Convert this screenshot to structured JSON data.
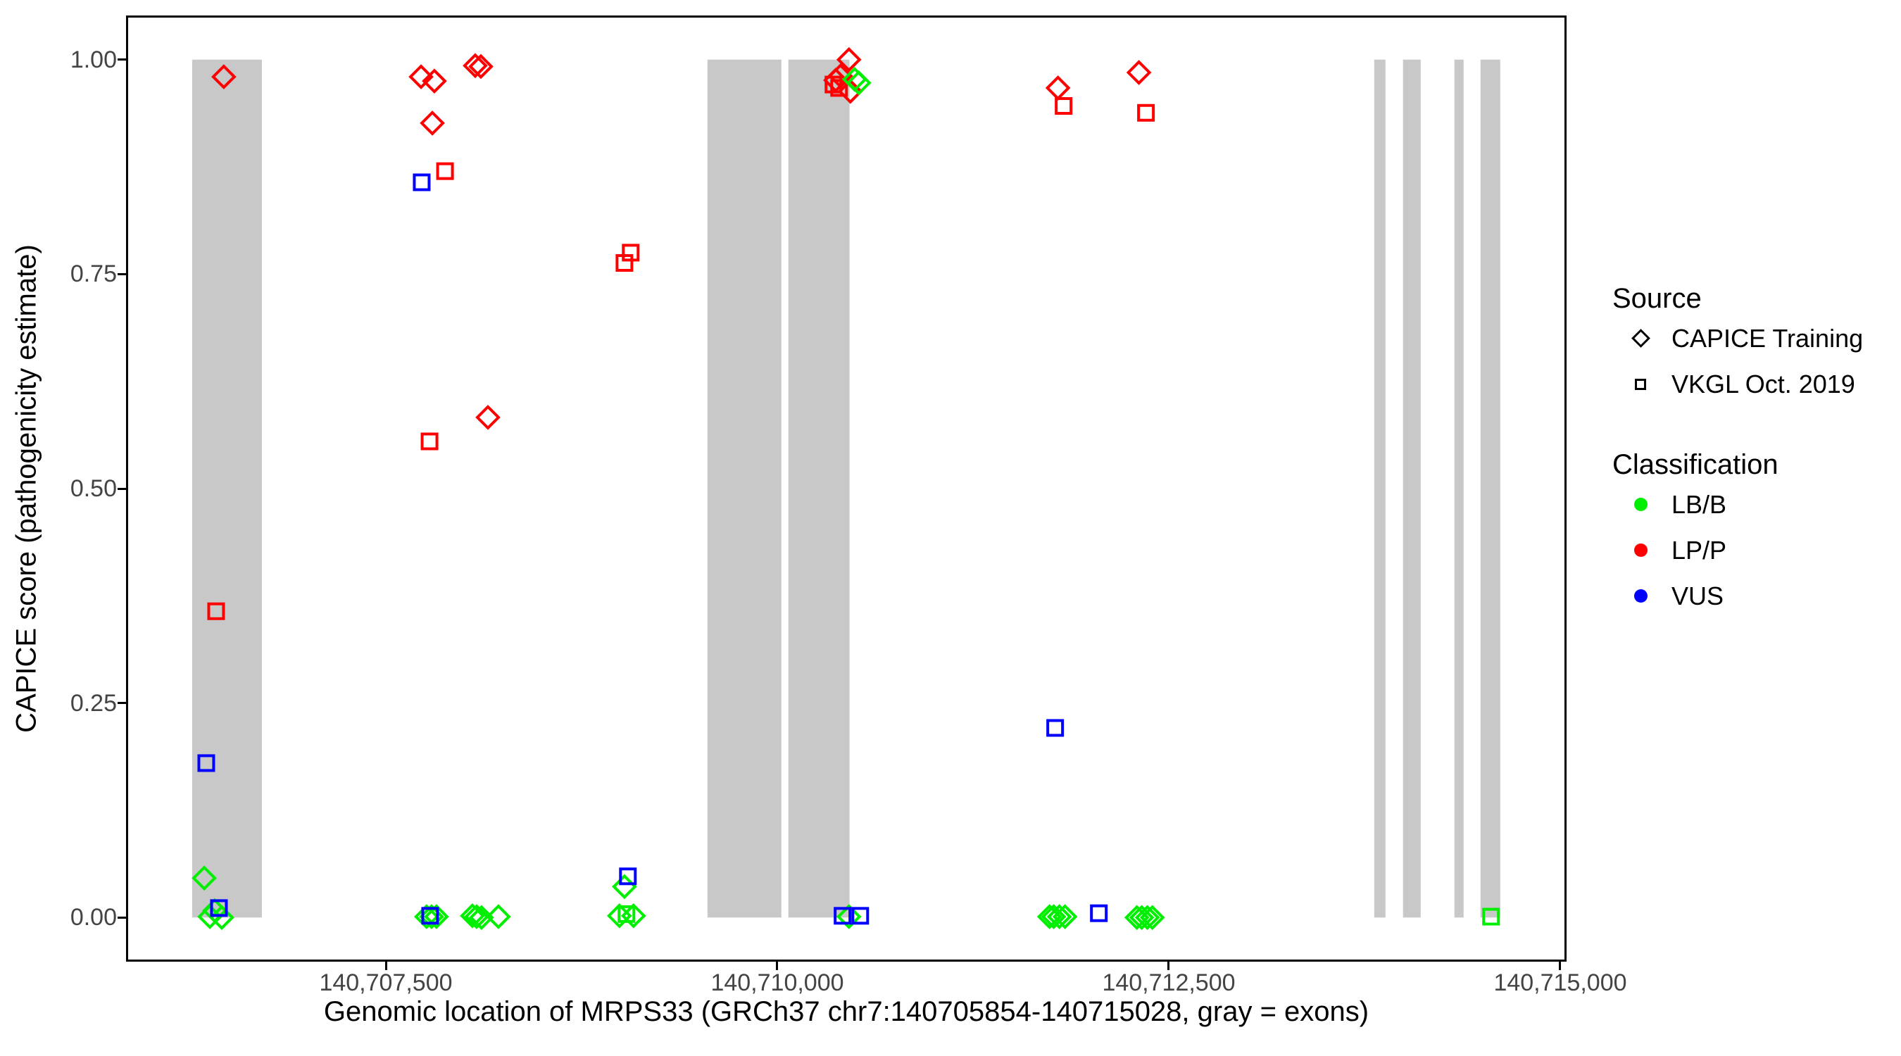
{
  "axes": {
    "y_title": "CAPICE score (pathogenicity estimate)",
    "x_title": "Genomic location of MRPS33 (GRCh37 chr7:140705854-140715028, gray = exons)",
    "y_ticks": [
      {
        "value": 0.0,
        "label": "0.00"
      },
      {
        "value": 0.25,
        "label": "0.25"
      },
      {
        "value": 0.5,
        "label": "0.50"
      },
      {
        "value": 0.75,
        "label": "0.75"
      },
      {
        "value": 1.0,
        "label": "1.00"
      }
    ],
    "x_ticks": [
      {
        "value": 140707500,
        "label": "140,707,500"
      },
      {
        "value": 140710000,
        "label": "140,710,000"
      },
      {
        "value": 140712500,
        "label": "140,712,500"
      },
      {
        "value": 140715000,
        "label": "140,715,000"
      }
    ]
  },
  "legend": {
    "source": {
      "title": "Source",
      "items": [
        {
          "label": "CAPICE Training",
          "shape": "diamond"
        },
        {
          "label": "VKGL Oct. 2019",
          "shape": "square"
        }
      ]
    },
    "classification": {
      "title": "Classification",
      "items": [
        {
          "label": "LB/B",
          "color": "#00EE00"
        },
        {
          "label": "LP/P",
          "color": "#FF0000"
        },
        {
          "label": "VUS",
          "color": "#0000FF"
        }
      ]
    }
  },
  "chart_data": {
    "type": "scatter",
    "title": "",
    "xlabel": "Genomic location of MRPS33 (GRCh37 chr7:140705854-140715028, gray = exons)",
    "ylabel": "CAPICE score (pathogenicity estimate)",
    "xlim": [
      140705854,
      140715028
    ],
    "ylim": [
      -0.049,
      1.049
    ],
    "grid": false,
    "legend_position": "right",
    "exon_color": "#C8C8C8",
    "exons": [
      [
        140706263,
        140706708
      ],
      [
        140709554,
        140710026
      ],
      [
        140710071,
        140710462
      ],
      [
        140713813,
        140713885
      ],
      [
        140713997,
        140714110
      ],
      [
        140714325,
        140714384
      ],
      [
        140714492,
        140714618
      ]
    ],
    "series": [
      {
        "name": "CAPICE Training / LP/P",
        "marker": "diamond",
        "color": "#FF0000",
        "points": [
          [
            140706465,
            0.98
          ],
          [
            140707725,
            0.98
          ],
          [
            140707810,
            0.975
          ],
          [
            140707797,
            0.926
          ],
          [
            140708071,
            0.993
          ],
          [
            140708107,
            0.992
          ],
          [
            140708152,
            0.583
          ],
          [
            140710458,
            1.0
          ],
          [
            140710404,
            0.981
          ],
          [
            140710373,
            0.976
          ],
          [
            140710467,
            0.963
          ],
          [
            140711793,
            0.967
          ],
          [
            140712310,
            0.985
          ]
        ]
      },
      {
        "name": "VKGL Oct. 2019 / LP/P",
        "marker": "square",
        "color": "#FF0000",
        "points": [
          [
            140706416,
            0.357
          ],
          [
            140707878,
            0.87
          ],
          [
            140707779,
            0.555
          ],
          [
            140709064,
            0.775
          ],
          [
            140709024,
            0.763
          ],
          [
            140710359,
            0.971
          ],
          [
            140710395,
            0.967
          ],
          [
            140711829,
            0.946
          ],
          [
            140712355,
            0.938
          ]
        ]
      },
      {
        "name": "CAPICE Training / LB/B",
        "marker": "diamond",
        "color": "#00EE00",
        "points": [
          [
            140706340,
            0.046
          ],
          [
            140706407,
            0.008
          ],
          [
            140706376,
            0.001
          ],
          [
            140706452,
            0.0
          ],
          [
            140707760,
            0.001
          ],
          [
            140707792,
            0.001
          ],
          [
            140707823,
            0.001
          ],
          [
            140708053,
            0.002
          ],
          [
            140708080,
            0.001
          ],
          [
            140708111,
            0.0
          ],
          [
            140708219,
            0.001
          ],
          [
            140709024,
            0.036
          ],
          [
            140708992,
            0.002
          ],
          [
            140709082,
            0.002
          ],
          [
            140710458,
            0.001
          ],
          [
            140710494,
            0.977
          ],
          [
            140710521,
            0.973
          ],
          [
            140711739,
            0.001
          ],
          [
            140711766,
            0.001
          ],
          [
            140711802,
            0.001
          ],
          [
            140711838,
            0.001
          ],
          [
            140712297,
            0.0
          ],
          [
            140712328,
            0.0
          ],
          [
            140712364,
            0.0
          ],
          [
            140712396,
            0.0
          ]
        ]
      },
      {
        "name": "VKGL Oct. 2019 / LB/B",
        "marker": "square",
        "color": "#00EE00",
        "points": [
          [
            140709037,
            0.004
          ],
          [
            140714559,
            0.001
          ]
        ]
      },
      {
        "name": "VKGL Oct. 2019 / VUS",
        "marker": "square",
        "color": "#0000FF",
        "points": [
          [
            140706353,
            0.18
          ],
          [
            140706434,
            0.011
          ],
          [
            140707729,
            0.857
          ],
          [
            140707783,
            0.002
          ],
          [
            140709046,
            0.048
          ],
          [
            140710417,
            0.002
          ],
          [
            140710530,
            0.002
          ],
          [
            140711775,
            0.221
          ],
          [
            140712054,
            0.005
          ]
        ]
      }
    ]
  }
}
